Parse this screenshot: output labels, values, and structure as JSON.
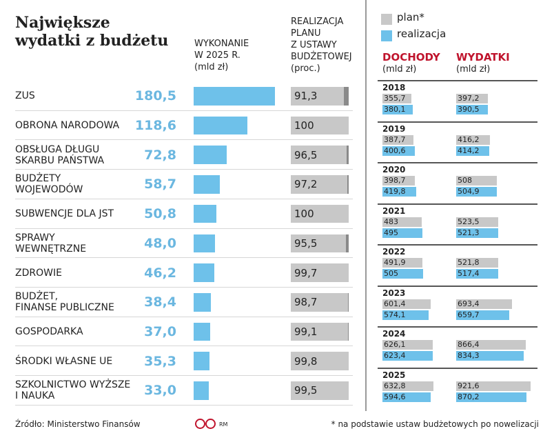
{
  "chart_data": [
    {
      "type": "hbar",
      "title": "Największe\nwydatki z budżetu",
      "categories": [
        "ZUS",
        "OBRONA NARODOWA",
        "OBSŁUGA DŁUGU\nSKARBU PAŃSTWA",
        "BUDŻETY\nWOJEWODÓW",
        "SUBWENCJE DLA JST",
        "SPRAWY\nWEWNĘTRZNE",
        "ZDROWIE",
        "BUDŻET,\nFINANSE PUBLICZNE",
        "GOSPODARKA",
        "ŚRODKI WŁASNE UE",
        "SZKOLNICTWO WYŻSZE\nI NAUKA"
      ],
      "xlim": [
        0,
        180.5
      ],
      "series": [
        {
          "name": "WYKONANIE\nW 2025 R.\n(mld zł)",
          "color": "#6ec1ea",
          "values": [
            180.5,
            118.6,
            72.8,
            58.7,
            50.8,
            48.0,
            46.2,
            38.4,
            37.0,
            35.3,
            33.0
          ],
          "value_labels": [
            "180,5",
            "118,6",
            "72,8",
            "58,7",
            "50,8",
            "48,0",
            "46,2",
            "38,4",
            "37,0",
            "35,3",
            "33,0"
          ]
        },
        {
          "name": "REALIZACJA\nPLANU\nZ USTAWY\nBUDŻETOWEJ\n(proc.)",
          "color": "#c8c8c8",
          "xlim": [
            0,
            100
          ],
          "values": [
            91.3,
            100,
            96.5,
            97.2,
            100,
            95.5,
            99.7,
            98.7,
            99.1,
            99.8,
            99.5
          ],
          "value_labels": [
            "91,3",
            "100",
            "96,5",
            "97,2",
            "100",
            "95,5",
            "99,7",
            "98,7",
            "99,1",
            "99,8",
            "99,5"
          ]
        }
      ]
    },
    {
      "type": "grouped-hbar",
      "categories": [
        "2018",
        "2019",
        "2020",
        "2021",
        "2022",
        "2023",
        "2024",
        "2025"
      ],
      "xlim": [
        0,
        1000
      ],
      "series": [
        {
          "name": "plan*",
          "color": "#c8c8c8"
        },
        {
          "name": "realizacja",
          "color": "#6ec1ea"
        }
      ],
      "groups": [
        {
          "title": "DOCHODY",
          "unit": "(mld zł)",
          "series": [
            {
              "values": [
                355.7,
                387.7,
                398.7,
                483,
                491.9,
                601.4,
                626.1,
                632.8
              ],
              "value_labels": [
                "355,7",
                "387,7",
                "398,7",
                "483",
                "491,9",
                "601,4",
                "626,1",
                "632,8"
              ]
            },
            {
              "values": [
                380.1,
                400.6,
                419.8,
                495,
                505,
                574.1,
                623.4,
                594.6
              ],
              "value_labels": [
                "380,1",
                "400,6",
                "419,8",
                "495",
                "505",
                "574,1",
                "623,4",
                "594,6"
              ]
            }
          ]
        },
        {
          "title": "WYDATKI",
          "unit": "(mld zł)",
          "series": [
            {
              "values": [
                397.2,
                416.2,
                508,
                523.5,
                521.8,
                693.4,
                866.4,
                921.6
              ],
              "value_labels": [
                "397,2",
                "416,2",
                "508",
                "523,5",
                "521,8",
                "693,4",
                "866,4",
                "921,6"
              ]
            },
            {
              "values": [
                390.5,
                414.2,
                504.9,
                521.3,
                517.4,
                659.7,
                834.3,
                870.2
              ],
              "value_labels": [
                "390,5",
                "414,2",
                "504,9",
                "521,3",
                "517,4",
                "659,7",
                "834,3",
                "870,2"
              ]
            }
          ]
        }
      ]
    }
  ],
  "footer": {
    "source": "Źródło: Ministerstwo Finansów",
    "logo": "RM",
    "footnote": "* na podstawie ustaw budżetowych po nowelizacji"
  }
}
